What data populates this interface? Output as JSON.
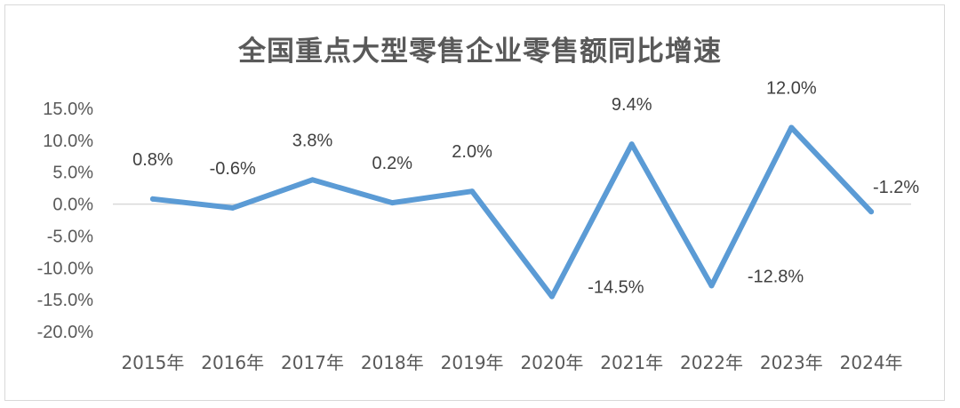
{
  "chart_data": {
    "type": "line",
    "title": "全国重点大型零售企业零售额同比增速",
    "xlabel": "",
    "ylabel": "",
    "categories": [
      "2015年",
      "2016年",
      "2017年",
      "2018年",
      "2019年",
      "2020年",
      "2021年",
      "2022年",
      "2023年",
      "2024年"
    ],
    "series": [
      {
        "values": [
          0.8,
          -0.6,
          3.8,
          0.2,
          2.0,
          -14.5,
          9.4,
          -12.8,
          12.0,
          -1.2
        ]
      }
    ],
    "data_labels": [
      "0.8%",
      "-0.6%",
      "3.8%",
      "0.2%",
      "2.0%",
      "-14.5%",
      "9.4%",
      "-12.8%",
      "12.0%",
      "-1.2%"
    ],
    "y_tick_labels": [
      "15.0%",
      "10.0%",
      "5.0%",
      "0.0%",
      "-5.0%",
      "-10.0%",
      "-15.0%",
      "-20.0%"
    ],
    "ylim": [
      -20,
      15
    ],
    "grid": false,
    "legend": "none",
    "line_color": "#5b9bd5"
  }
}
